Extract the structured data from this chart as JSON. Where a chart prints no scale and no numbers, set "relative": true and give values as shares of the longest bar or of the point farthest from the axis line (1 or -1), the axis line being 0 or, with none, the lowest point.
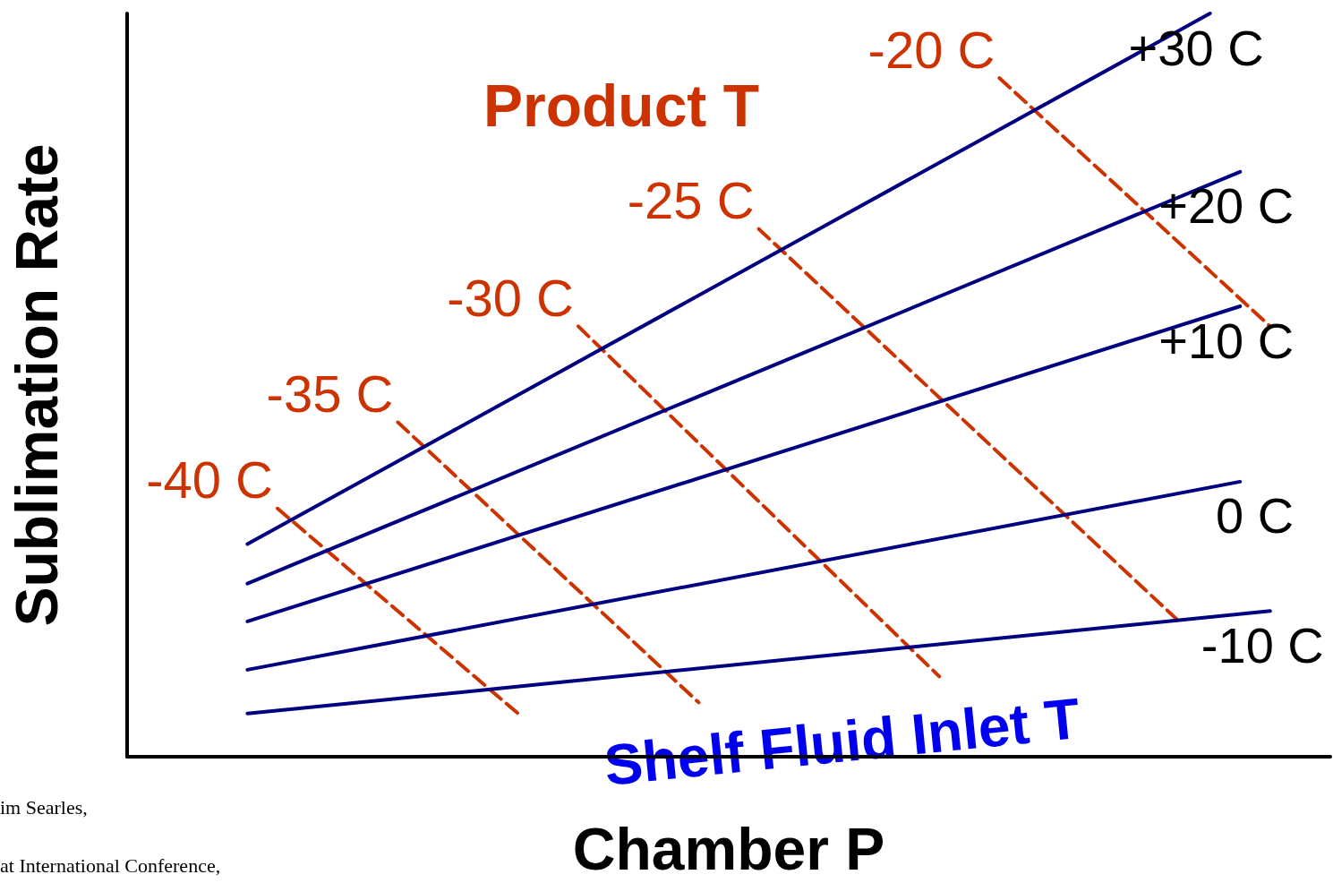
{
  "chart_data": {
    "type": "line",
    "relative": true,
    "xlabel": "Chamber P",
    "ylabel": "Sublimation Rate",
    "legend": false,
    "grid": false,
    "marker": "none",
    "annotations": [
      "Product T",
      "Shelf Fluid Inlet T",
      "im Searles,",
      "at International Conference,"
    ],
    "categories": [
      null,
      null,
      null,
      null,
      null,
      null,
      null,
      null,
      null,
      null,
      null,
      null,
      null,
      null,
      null,
      null,
      null,
      null,
      null,
      null,
      null,
      null,
      null,
      null,
      null,
      null,
      null,
      null,
      null,
      null,
      null,
      null,
      null,
      null,
      null,
      null,
      null,
      null,
      null,
      null,
      null
    ],
    "series": [
      {
        "name": "+30 C",
        "color": "#000080",
        "values": [
          null,
          null,
          null,
          null,
          0.286,
          null,
          null,
          null,
          null,
          null,
          null,
          null,
          null,
          null,
          null,
          null,
          null,
          null,
          null,
          null,
          null,
          null,
          null,
          null,
          null,
          null,
          null,
          null,
          null,
          null,
          null,
          null,
          null,
          null,
          null,
          null,
          1.0,
          null,
          null,
          null,
          null
        ]
      },
      {
        "name": "+20 C",
        "color": "#000080",
        "values": [
          null,
          null,
          null,
          null,
          0.233,
          null,
          null,
          null,
          null,
          null,
          null,
          null,
          null,
          null,
          null,
          null,
          null,
          null,
          null,
          null,
          null,
          null,
          null,
          null,
          null,
          null,
          null,
          null,
          null,
          null,
          null,
          null,
          null,
          null,
          null,
          null,
          null,
          0.787,
          null,
          null,
          null
        ]
      },
      {
        "name": "+10 C",
        "color": "#000080",
        "values": [
          null,
          null,
          null,
          null,
          0.182,
          null,
          null,
          null,
          null,
          null,
          null,
          null,
          null,
          null,
          null,
          null,
          null,
          null,
          null,
          null,
          null,
          null,
          null,
          null,
          null,
          null,
          null,
          null,
          null,
          null,
          null,
          null,
          null,
          null,
          null,
          null,
          null,
          0.606,
          null,
          null,
          null
        ]
      },
      {
        "name": "0 C",
        "color": "#000080",
        "values": [
          null,
          null,
          null,
          null,
          0.117,
          null,
          null,
          null,
          null,
          null,
          null,
          null,
          null,
          null,
          null,
          null,
          null,
          null,
          null,
          null,
          null,
          null,
          null,
          null,
          null,
          null,
          null,
          null,
          null,
          null,
          null,
          null,
          null,
          null,
          null,
          null,
          null,
          0.37,
          null,
          null,
          null
        ]
      },
      {
        "name": "-10 C",
        "color": "#000080",
        "values": [
          null,
          null,
          null,
          null,
          0.058,
          null,
          null,
          null,
          null,
          null,
          null,
          null,
          null,
          null,
          null,
          null,
          null,
          null,
          null,
          null,
          null,
          null,
          null,
          null,
          null,
          null,
          null,
          null,
          null,
          null,
          null,
          null,
          null,
          null,
          null,
          null,
          null,
          null,
          0.196,
          null,
          null
        ]
      },
      {
        "name": "-40 C",
        "color": "#cc3300",
        "line_style": "dashed",
        "values": [
          null,
          null,
          null,
          null,
          null,
          0.334,
          null,
          null,
          null,
          null,
          null,
          null,
          null,
          0.058,
          null,
          null,
          null,
          null,
          null,
          null,
          null,
          null,
          null,
          null,
          null,
          null,
          null,
          null,
          null,
          null,
          null,
          null,
          null,
          null,
          null,
          null,
          null,
          null,
          null,
          null,
          null
        ]
      },
      {
        "name": "-35 C",
        "color": "#cc3300",
        "line_style": "dashed",
        "values": [
          null,
          null,
          null,
          null,
          null,
          null,
          null,
          null,
          null,
          0.45,
          null,
          null,
          null,
          null,
          null,
          null,
          null,
          null,
          null,
          0.073,
          null,
          null,
          null,
          null,
          null,
          null,
          null,
          null,
          null,
          null,
          null,
          null,
          null,
          null,
          null,
          null,
          null,
          null,
          null,
          null,
          null
        ]
      },
      {
        "name": "-30 C",
        "color": "#cc3300",
        "line_style": "dashed",
        "values": [
          null,
          null,
          null,
          null,
          null,
          null,
          null,
          null,
          null,
          null,
          null,
          null,
          null,
          null,
          null,
          0.579,
          null,
          null,
          null,
          null,
          null,
          null,
          null,
          null,
          null,
          null,
          null,
          0.108,
          null,
          null,
          null,
          null,
          null,
          null,
          null,
          null,
          null,
          null,
          null,
          null,
          null
        ]
      },
      {
        "name": "-25 C",
        "color": "#cc3300",
        "line_style": "dashed",
        "values": [
          null,
          null,
          null,
          null,
          null,
          null,
          null,
          null,
          null,
          null,
          null,
          null,
          null,
          null,
          null,
          null,
          null,
          null,
          null,
          null,
          null,
          0.71,
          null,
          null,
          null,
          null,
          null,
          null,
          null,
          null,
          null,
          null,
          null,
          null,
          null,
          0.181,
          null,
          null,
          null,
          null,
          null
        ]
      },
      {
        "name": "-20 C",
        "color": "#cc3300",
        "line_style": "dashed",
        "values": [
          null,
          null,
          null,
          null,
          null,
          null,
          null,
          null,
          null,
          null,
          null,
          null,
          null,
          null,
          null,
          null,
          null,
          null,
          null,
          null,
          null,
          null,
          null,
          null,
          null,
          null,
          null,
          null,
          null,
          0.913,
          null,
          null,
          null,
          null,
          null,
          null,
          null,
          null,
          0.579,
          null,
          null
        ]
      }
    ]
  }
}
